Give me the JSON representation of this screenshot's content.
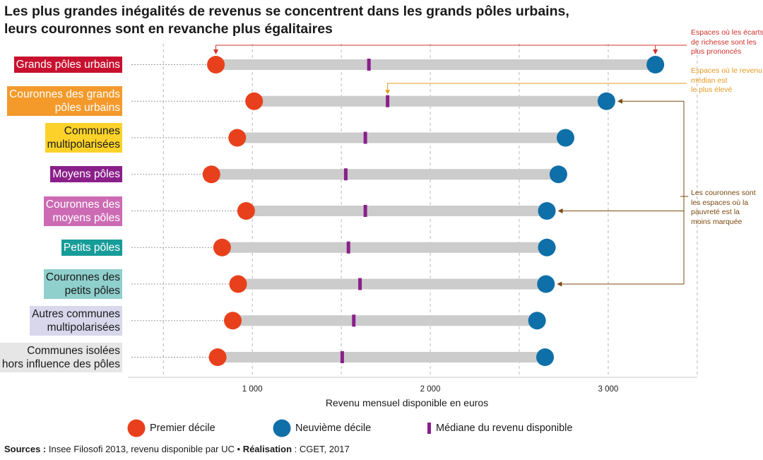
{
  "title": {
    "line1": "Les plus grandes inégalités de revenus se concentrent dans les grands pôles urbains,",
    "line2": "leurs couronnes sont en revanche plus égalitaires"
  },
  "colors": {
    "first_decile": "#e8401c",
    "ninth_decile": "#0f6fa8",
    "median": "#8a1f8a",
    "bar": "#cccccc",
    "annotation_red": "#d0302a",
    "annotation_orange": "#e89a22",
    "annotation_brown": "#7a4a10"
  },
  "chart_data": {
    "type": "dumbbell",
    "xlabel": "Revenu mensuel disponible en euros",
    "xlim": [
      300,
      3500
    ],
    "ticks": [
      {
        "value": 1000,
        "label": "1 000"
      },
      {
        "value": 2000,
        "label": "2 000"
      },
      {
        "value": 3000,
        "label": "3 000"
      }
    ],
    "gridlines": [
      500,
      1000,
      1500,
      2000,
      2500,
      3000,
      3500
    ],
    "series": [
      {
        "name": "Premier décile",
        "key": "d1"
      },
      {
        "name": "Neuvième décile",
        "key": "d9"
      },
      {
        "name": "Médiane du revenu disponible",
        "key": "median"
      }
    ],
    "categories": [
      {
        "lines": [
          "Grands pôles urbains"
        ],
        "bg": "#c8102e",
        "fg": "#ffffff",
        "d1": 795,
        "median": 1655,
        "d9": 3265
      },
      {
        "lines": [
          "Couronnes des grands",
          "pôles urbains"
        ],
        "bg": "#f39a2b",
        "fg": "#ffffff",
        "d1": 1010,
        "median": 1760,
        "d9": 2990
      },
      {
        "lines": [
          "Communes",
          "multipolarisées"
        ],
        "bg": "#fcd22a",
        "fg": "#1a1a1a",
        "d1": 915,
        "median": 1635,
        "d9": 2760
      },
      {
        "lines": [
          "Moyens pôles"
        ],
        "bg": "#8a1f8a",
        "fg": "#ffffff",
        "d1": 770,
        "median": 1525,
        "d9": 2720
      },
      {
        "lines": [
          "Couronnes des",
          "moyens pôles"
        ],
        "bg": "#cc6bb4",
        "fg": "#ffffff",
        "d1": 965,
        "median": 1635,
        "d9": 2655
      },
      {
        "lines": [
          "Petits pôles"
        ],
        "bg": "#169c99",
        "fg": "#ffffff",
        "d1": 830,
        "median": 1540,
        "d9": 2655
      },
      {
        "lines": [
          "Couronnes des",
          "petits pôles"
        ],
        "bg": "#8fcfcc",
        "fg": "#1a1a1a",
        "d1": 920,
        "median": 1605,
        "d9": 2650
      },
      {
        "lines": [
          "Autres communes",
          "multipolarisées"
        ],
        "bg": "#d9d7ec",
        "fg": "#1a1a1a",
        "d1": 890,
        "median": 1570,
        "d9": 2600
      },
      {
        "lines": [
          "Communes isolées",
          "hors influence des pôles"
        ],
        "bg": "#e6e6e6",
        "fg": "#1a1a1a",
        "d1": 805,
        "median": 1505,
        "d9": 2645
      }
    ]
  },
  "annotations": [
    {
      "key": "red",
      "lines": [
        "Espaces où les écarts",
        "de richesse sont les",
        "plus prononcés"
      ],
      "color": "#d0302a"
    },
    {
      "key": "orange",
      "lines": [
        "Espaces où le revenu",
        "médian est",
        "le plus élevé"
      ],
      "color": "#e89a22"
    },
    {
      "key": "brown",
      "lines": [
        "Les couronnes sont",
        "les espaces où la",
        "pauvreté est la",
        "moins marquée"
      ],
      "color": "#7a4a10"
    }
  ],
  "legend": {
    "first_decile": "Premier décile",
    "ninth_decile": "Neuvième décile",
    "median": "Médiane du revenu disponible"
  },
  "source": {
    "sources_label": "Sources :",
    "sources_text": " Insee Filosofi 2013, revenu disponible par UC • ",
    "realisation_label": "Réalisation",
    "realisation_text": " : CGET, 2017"
  }
}
